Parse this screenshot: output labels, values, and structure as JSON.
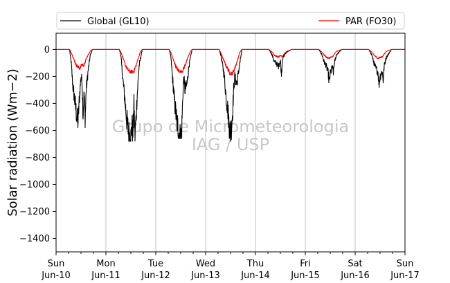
{
  "chart_data": {
    "type": "line",
    "title": "",
    "xlabel": "",
    "ylabel": "Solar radiation (Wm−2)",
    "ylim": [
      -1500,
      120
    ],
    "xlim": [
      "2012-06-10",
      "2012-06-17"
    ],
    "yticks": [
      0,
      -200,
      -400,
      -600,
      -800,
      -1000,
      -1200,
      -1400
    ],
    "xticks": [
      {
        "date": "2012-06-10",
        "day": "Sun",
        "label": "Jun-10"
      },
      {
        "date": "2012-06-11",
        "day": "Mon",
        "label": "Jun-11"
      },
      {
        "date": "2012-06-12",
        "day": "Tue",
        "label": "Jun-12"
      },
      {
        "date": "2012-06-13",
        "day": "Wed",
        "label": "Jun-13"
      },
      {
        "date": "2012-06-14",
        "day": "Thu",
        "label": "Jun-14"
      },
      {
        "date": "2012-06-15",
        "day": "Fri",
        "label": "Jun-15"
      },
      {
        "date": "2012-06-16",
        "day": "Sat",
        "label": "Jun-16"
      },
      {
        "date": "2012-06-17",
        "day": "Sun",
        "label": "Jun-17"
      }
    ],
    "grid": "x-major",
    "legend": "top",
    "watermark": [
      "Grupo de Micrometeorologia",
      "IAG / USP"
    ],
    "series": [
      {
        "name": "Global (GL10)",
        "color": "#000000",
        "days": [
          {
            "date": "2012-06-10",
            "peak": -580,
            "profile": [
              [
                6.5,
                0
              ],
              [
                7.3,
                -100
              ],
              [
                8,
                -260
              ],
              [
                9,
                -380
              ],
              [
                10,
                -500
              ],
              [
                10.5,
                -560
              ],
              [
                11,
                -420
              ],
              [
                11.5,
                -300
              ],
              [
                12,
                -200
              ],
              [
                12.5,
                -230
              ],
              [
                13,
                -480
              ],
              [
                13.5,
                -320
              ],
              [
                14,
                -520
              ],
              [
                14.5,
                -300
              ],
              [
                15.5,
                -150
              ],
              [
                16.5,
                -40
              ],
              [
                17.5,
                0
              ]
            ]
          },
          {
            "date": "2012-06-11",
            "peak": -680,
            "profile": [
              [
                6.5,
                0
              ],
              [
                7.3,
                -60
              ],
              [
                8,
                -200
              ],
              [
                9,
                -350
              ],
              [
                10,
                -520
              ],
              [
                11,
                -620
              ],
              [
                12,
                -660
              ],
              [
                12.5,
                -560
              ],
              [
                13,
                -620
              ],
              [
                13.5,
                -400
              ],
              [
                14,
                -640
              ],
              [
                14.5,
                -520
              ],
              [
                15,
                -350
              ],
              [
                16,
                -120
              ],
              [
                17.5,
                0
              ]
            ]
          },
          {
            "date": "2012-06-12",
            "peak": -660,
            "profile": [
              [
                6.5,
                0
              ],
              [
                7.3,
                -60
              ],
              [
                8,
                -200
              ],
              [
                9,
                -380
              ],
              [
                10,
                -520
              ],
              [
                11,
                -600
              ],
              [
                11.5,
                -640
              ],
              [
                12,
                -660
              ],
              [
                12.5,
                -600
              ],
              [
                13,
                -350
              ],
              [
                13.5,
                -200
              ],
              [
                14,
                -300
              ],
              [
                15,
                -260
              ],
              [
                16,
                -120
              ],
              [
                17.5,
                0
              ]
            ]
          },
          {
            "date": "2012-06-13",
            "peak": -690,
            "profile": [
              [
                6.5,
                0
              ],
              [
                7.3,
                -40
              ],
              [
                8,
                -100
              ],
              [
                9,
                -200
              ],
              [
                10,
                -380
              ],
              [
                10.5,
                -420
              ],
              [
                11,
                -500
              ],
              [
                11.5,
                -580
              ],
              [
                12,
                -620
              ],
              [
                12.5,
                -560
              ],
              [
                13,
                -460
              ],
              [
                13.5,
                -300
              ],
              [
                14,
                -200
              ],
              [
                15,
                -260
              ],
              [
                16,
                -150
              ],
              [
                17.5,
                0
              ]
            ]
          },
          {
            "date": "2012-06-14",
            "peak": -200,
            "profile": [
              [
                6.5,
                0
              ],
              [
                8,
                -40
              ],
              [
                9,
                -90
              ],
              [
                10,
                -100
              ],
              [
                11,
                -130
              ],
              [
                12,
                -80
              ],
              [
                12.5,
                -190
              ],
              [
                13,
                -70
              ],
              [
                14,
                -40
              ],
              [
                15,
                -20
              ],
              [
                17.5,
                0
              ]
            ]
          },
          {
            "date": "2012-06-15",
            "peak": -270,
            "profile": [
              [
                6.5,
                0
              ],
              [
                8,
                -40
              ],
              [
                9,
                -90
              ],
              [
                10,
                -120
              ],
              [
                11,
                -170
              ],
              [
                11.5,
                -250
              ],
              [
                12,
                -180
              ],
              [
                13,
                -130
              ],
              [
                13.5,
                -170
              ],
              [
                14,
                -100
              ],
              [
                15,
                -40
              ],
              [
                17.5,
                0
              ]
            ]
          },
          {
            "date": "2012-06-16",
            "peak": -290,
            "profile": [
              [
                6.5,
                0
              ],
              [
                8,
                -40
              ],
              [
                9,
                -100
              ],
              [
                10,
                -140
              ],
              [
                11,
                -170
              ],
              [
                11.5,
                -260
              ],
              [
                12,
                -200
              ],
              [
                13,
                -160
              ],
              [
                13.5,
                -230
              ],
              [
                14,
                -120
              ],
              [
                15,
                -60
              ],
              [
                17.5,
                0
              ]
            ]
          }
        ]
      },
      {
        "name": "PAR (FO30)",
        "color": "#ff0000",
        "days": [
          {
            "date": "2012-06-10",
            "peak": -150,
            "profile": [
              [
                6.5,
                0
              ],
              [
                7.5,
                -30
              ],
              [
                8.5,
                -70
              ],
              [
                9.5,
                -110
              ],
              [
                10.5,
                -130
              ],
              [
                11.5,
                -140
              ],
              [
                12.5,
                -110
              ],
              [
                13.5,
                -120
              ],
              [
                14.5,
                -70
              ],
              [
                15.5,
                -40
              ],
              [
                16.5,
                -10
              ],
              [
                17.5,
                0
              ]
            ]
          },
          {
            "date": "2012-06-11",
            "peak": -175,
            "profile": [
              [
                6.5,
                0
              ],
              [
                7.5,
                -30
              ],
              [
                8.5,
                -80
              ],
              [
                9.5,
                -120
              ],
              [
                10.5,
                -150
              ],
              [
                11.5,
                -165
              ],
              [
                12.5,
                -170
              ],
              [
                13.5,
                -160
              ],
              [
                14.5,
                -120
              ],
              [
                15.5,
                -70
              ],
              [
                16.5,
                -20
              ],
              [
                17.5,
                0
              ]
            ]
          },
          {
            "date": "2012-06-12",
            "peak": -170,
            "profile": [
              [
                6.5,
                0
              ],
              [
                7.5,
                -30
              ],
              [
                8.5,
                -80
              ],
              [
                9.5,
                -120
              ],
              [
                10.5,
                -150
              ],
              [
                11.5,
                -165
              ],
              [
                12.5,
                -170
              ],
              [
                13.5,
                -140
              ],
              [
                14.5,
                -100
              ],
              [
                15.5,
                -60
              ],
              [
                16.5,
                -20
              ],
              [
                17.5,
                0
              ]
            ]
          },
          {
            "date": "2012-06-13",
            "peak": -190,
            "profile": [
              [
                6.5,
                0
              ],
              [
                7.5,
                -30
              ],
              [
                8.5,
                -70
              ],
              [
                9.5,
                -110
              ],
              [
                10.5,
                -140
              ],
              [
                11.5,
                -170
              ],
              [
                12.5,
                -185
              ],
              [
                13.5,
                -160
              ],
              [
                14.5,
                -120
              ],
              [
                15.5,
                -70
              ],
              [
                16.5,
                -20
              ],
              [
                17.5,
                0
              ]
            ]
          },
          {
            "date": "2012-06-14",
            "peak": -60,
            "profile": [
              [
                6.5,
                0
              ],
              [
                8,
                -20
              ],
              [
                9,
                -40
              ],
              [
                10,
                -50
              ],
              [
                11,
                -55
              ],
              [
                12,
                -45
              ],
              [
                13,
                -50
              ],
              [
                14,
                -30
              ],
              [
                15,
                -15
              ],
              [
                17.5,
                0
              ]
            ]
          },
          {
            "date": "2012-06-15",
            "peak": -70,
            "profile": [
              [
                6.5,
                0
              ],
              [
                8,
                -20
              ],
              [
                9,
                -40
              ],
              [
                10,
                -55
              ],
              [
                11,
                -65
              ],
              [
                12,
                -60
              ],
              [
                13,
                -55
              ],
              [
                14,
                -35
              ],
              [
                15,
                -15
              ],
              [
                17.5,
                0
              ]
            ]
          },
          {
            "date": "2012-06-16",
            "peak": -70,
            "profile": [
              [
                6.5,
                0
              ],
              [
                8,
                -20
              ],
              [
                9,
                -40
              ],
              [
                10,
                -55
              ],
              [
                11,
                -65
              ],
              [
                12,
                -60
              ],
              [
                13,
                -55
              ],
              [
                14,
                -35
              ],
              [
                15,
                -15
              ],
              [
                17.5,
                0
              ]
            ]
          }
        ]
      }
    ]
  }
}
